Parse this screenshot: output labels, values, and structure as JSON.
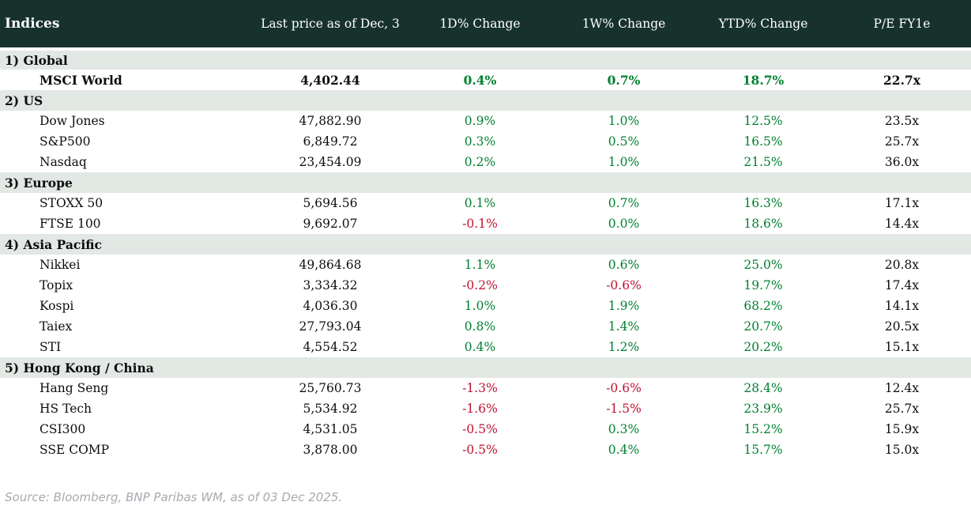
{
  "chart_data": {
    "type": "table",
    "title": "Indices",
    "columns": [
      "Indices",
      "Last price as of Dec, 3",
      "1D% Change",
      "1W% Change",
      "YTD% Change",
      "P/E FY1e"
    ],
    "sections": [
      {
        "label": "1) Global",
        "rows": [
          {
            "name": "MSCI World",
            "bold": true,
            "values": [
              "4,402.44",
              "0.4%",
              "0.7%",
              "18.7%",
              "22.7x"
            ]
          }
        ]
      },
      {
        "label": "2) US",
        "rows": [
          {
            "name": "Dow Jones",
            "values": [
              "47,882.90",
              "0.9%",
              "1.0%",
              "12.5%",
              "23.5x"
            ]
          },
          {
            "name": "S&P500",
            "values": [
              "6,849.72",
              "0.3%",
              "0.5%",
              "16.5%",
              "25.7x"
            ]
          },
          {
            "name": "Nasdaq",
            "values": [
              "23,454.09",
              "0.2%",
              "1.0%",
              "21.5%",
              "36.0x"
            ]
          }
        ]
      },
      {
        "label": "3) Europe",
        "rows": [
          {
            "name": "STOXX 50",
            "values": [
              "5,694.56",
              "0.1%",
              "0.7%",
              "16.3%",
              "17.1x"
            ]
          },
          {
            "name": "FTSE 100",
            "values": [
              "9,692.07",
              "-0.1%",
              "0.0%",
              "18.6%",
              "14.4x"
            ]
          }
        ]
      },
      {
        "label": "4) Asia Pacific",
        "rows": [
          {
            "name": "Nikkei",
            "values": [
              "49,864.68",
              "1.1%",
              "0.6%",
              "25.0%",
              "20.8x"
            ]
          },
          {
            "name": "Topix",
            "values": [
              "3,334.32",
              "-0.2%",
              "-0.6%",
              "19.7%",
              "17.4x"
            ]
          },
          {
            "name": "Kospi",
            "values": [
              "4,036.30",
              "1.0%",
              "1.9%",
              "68.2%",
              "14.1x"
            ]
          },
          {
            "name": "Taiex",
            "values": [
              "27,793.04",
              "0.8%",
              "1.4%",
              "20.7%",
              "20.5x"
            ]
          },
          {
            "name": "STI",
            "values": [
              "4,554.52",
              "0.4%",
              "1.2%",
              "20.2%",
              "15.1x"
            ]
          }
        ]
      },
      {
        "label": "5) Hong Kong / China",
        "rows": [
          {
            "name": "Hang Seng",
            "values": [
              "25,760.73",
              "-1.3%",
              "-0.6%",
              "28.4%",
              "12.4x"
            ]
          },
          {
            "name": "HS Tech",
            "values": [
              "5,534.92",
              "-1.6%",
              "-1.5%",
              "23.9%",
              "25.7x"
            ]
          },
          {
            "name": "CSI300",
            "values": [
              "4,531.05",
              "-0.5%",
              "0.3%",
              "15.2%",
              "15.9x"
            ]
          },
          {
            "name": "SSE COMP",
            "values": [
              "3,878.00",
              "-0.5%",
              "0.4%",
              "15.7%",
              "15.0x"
            ]
          }
        ]
      }
    ]
  },
  "footer": {
    "source_text": "Source: Bloomberg, BNP Paribas WM, as of 03 Dec 2025."
  },
  "colors": {
    "header_bg": "#17322d",
    "header_text": "#ffffff",
    "band_bg": "#e2e8e4",
    "positive": "#008030",
    "negative": "#c1122f",
    "source_text": "#a6abb0"
  }
}
